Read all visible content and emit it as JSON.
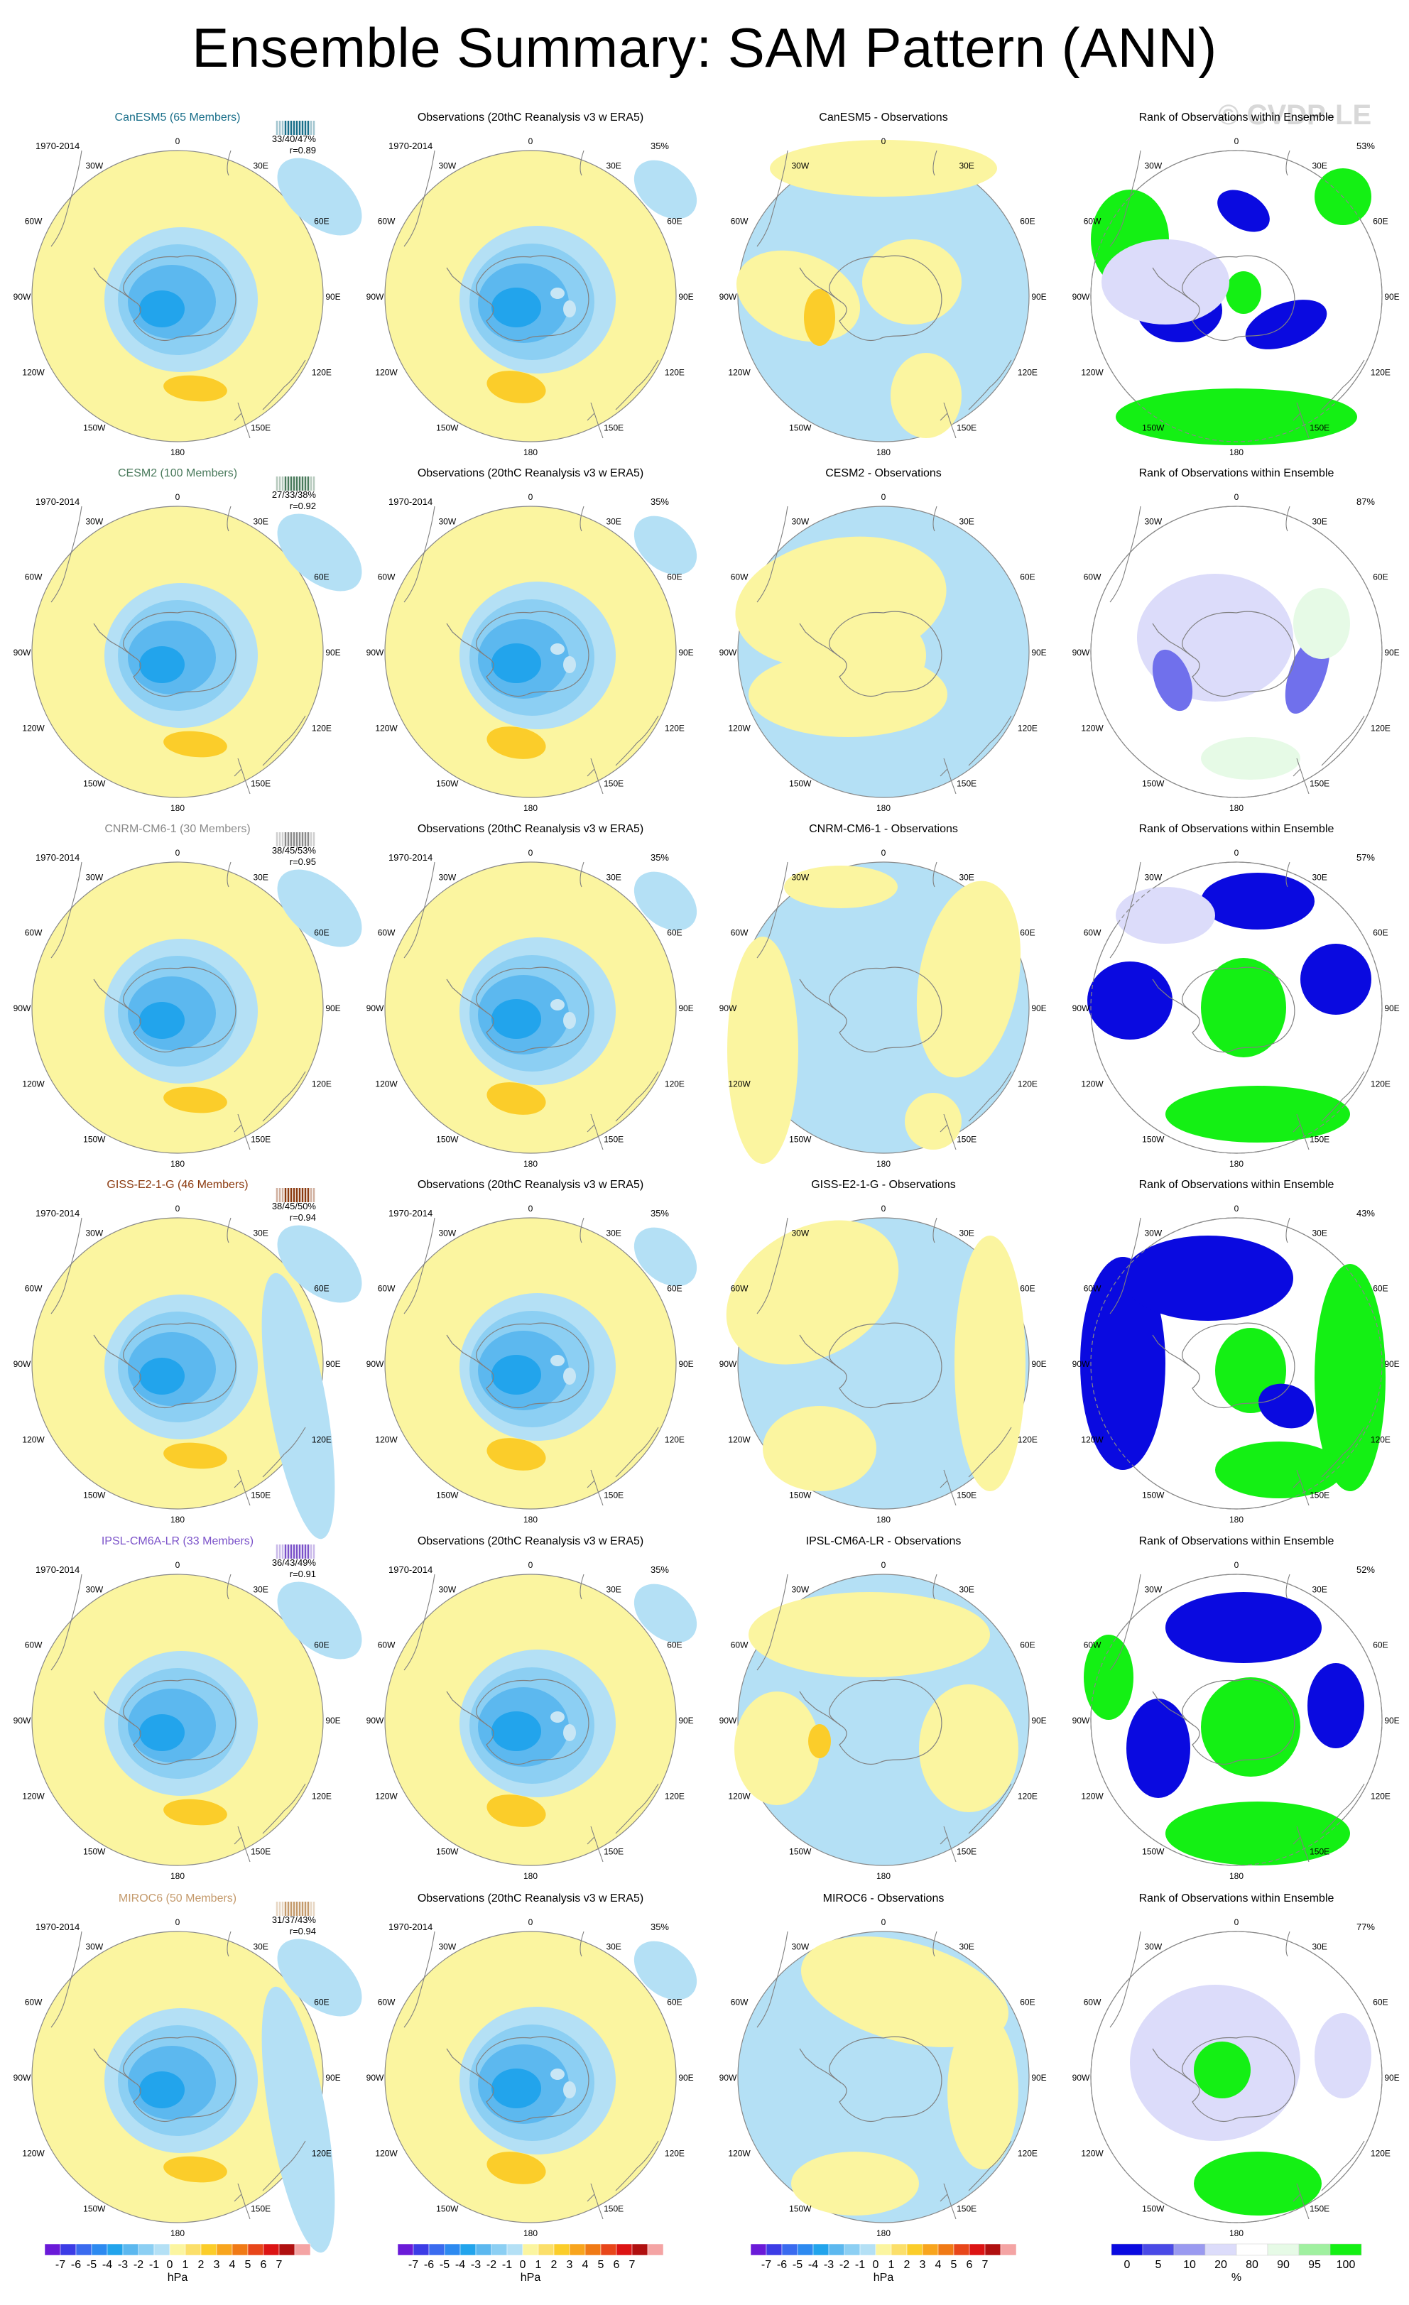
{
  "title": "Ensemble Summary: SAM Pattern (ANN)",
  "watermark": "© CVDP-LE",
  "colors": {
    "land": "#fbf5a0",
    "ocean_blue": "#b4e0f5",
    "blue2": "#8ccff3",
    "blue3": "#5cb8ef",
    "blue4": "#22a4ec",
    "blue5": "#1e78e0",
    "orange": "#fbcd2a",
    "rank_dark": "#0a0ae0",
    "rank_mid": "#7070ec",
    "rank_light": "#dcdcfa",
    "rank_green": "#14f014",
    "rank_green_light": "#e6fae6",
    "coast": "#808080"
  },
  "lon_labels": [
    "0",
    "30E",
    "60E",
    "90E",
    "120E",
    "150E",
    "180",
    "150W",
    "120W",
    "90W",
    "60W",
    "30W"
  ],
  "period": "1970-2014",
  "obs_title": "Observations (20thC Reanalysis v3 w ERA5)",
  "rank_title": "Rank of Observations within Ensemble",
  "rows": [
    {
      "model": "CanESM5 (65 Members)",
      "model_color": "#1a6f8a",
      "stats": "33/40/47%",
      "r": "r=0.89",
      "obs_pct": "35%",
      "diff_title": "CanESM5 - Observations",
      "rank_pct": "53%"
    },
    {
      "model": "CESM2 (100 Members)",
      "model_color": "#4a7a5c",
      "stats": "27/33/38%",
      "r": "r=0.92",
      "obs_pct": "35%",
      "diff_title": "CESM2 - Observations",
      "rank_pct": "87%"
    },
    {
      "model": "CNRM-CM6-1 (30 Members)",
      "model_color": "#8a8a8a",
      "stats": "38/45/53%",
      "r": "r=0.95",
      "obs_pct": "35%",
      "diff_title": "CNRM-CM6-1 - Observations",
      "rank_pct": "57%"
    },
    {
      "model": "GISS-E2-1-G (46 Members)",
      "model_color": "#8b3a0f",
      "stats": "38/45/50%",
      "r": "r=0.94",
      "obs_pct": "35%",
      "diff_title": "GISS-E2-1-G - Observations",
      "rank_pct": "43%"
    },
    {
      "model": "IPSL-CM6A-LR (33 Members)",
      "model_color": "#7b52c9",
      "stats": "36/43/49%",
      "r": "r=0.91",
      "obs_pct": "35%",
      "diff_title": "IPSL-CM6A-LR - Observations",
      "rank_pct": "52%"
    },
    {
      "model": "MIROC6 (50 Members)",
      "model_color": "#c49a6c",
      "stats": "31/37/43%",
      "r": "r=0.94",
      "obs_pct": "35%",
      "diff_title": "MIROC6 - Observations",
      "rank_pct": "77%"
    }
  ],
  "chart_data": [
    {
      "type": "heatmap",
      "description_of_columns": [
        "model ensemble-mean SAM pattern",
        "observed SAM pattern",
        "model minus observations",
        "rank of observations within ensemble"
      ],
      "projection": "south polar stereographic",
      "hpa_colorbar": {
        "labels": [
          "-7",
          "-6",
          "-5",
          "-4",
          "-3",
          "-2",
          "-1",
          "0",
          "1",
          "2",
          "3",
          "4",
          "5",
          "6",
          "7"
        ],
        "colors": [
          "#6a1ad8",
          "#3c3ce6",
          "#3a6bef",
          "#2d8af0",
          "#22a4ec",
          "#5cb8ef",
          "#8ccff3",
          "#b4e0f5",
          "#fbf5a0",
          "#fbdf6a",
          "#fbcd2a",
          "#f8a51e",
          "#f07a16",
          "#e8461a",
          "#dc1414",
          "#b01010",
          "#f4a4a4"
        ],
        "unit": "hPa"
      },
      "rank_colorbar": {
        "labels": [
          "0",
          "5",
          "10",
          "20",
          "80",
          "90",
          "95",
          "100"
        ],
        "colors": [
          "#0a0ae0",
          "#4a4ae6",
          "#9a9af0",
          "#dcdcfa",
          "#ffffff",
          "#e6fae6",
          "#a0f0a0",
          "#14f014"
        ],
        "unit": "%"
      }
    }
  ]
}
